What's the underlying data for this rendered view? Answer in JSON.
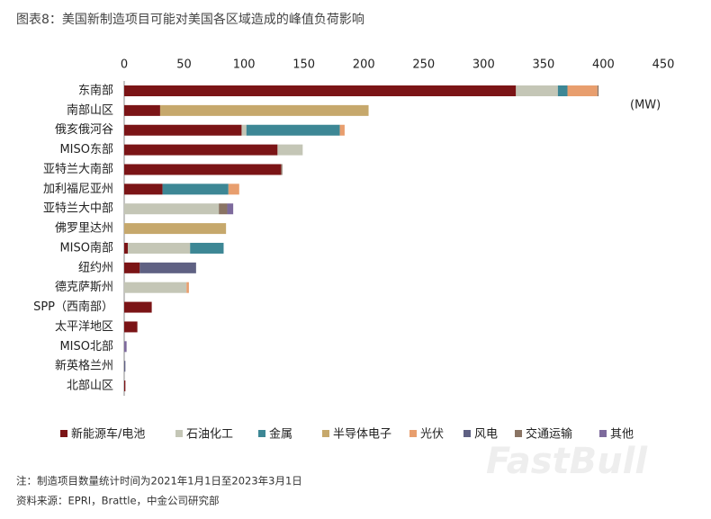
{
  "chart_data": {
    "type": "bar",
    "orientation": "horizontal",
    "stacked": true,
    "title": "图表8：美国新制造项目可能对美国各区域造成的峰值负荷影响",
    "unit_label": "(MW)",
    "categories": [
      "东南部",
      "南部山区",
      "俄亥俄河谷",
      "MISO东部",
      "亚特兰大南部",
      "加利福尼亚州",
      "亚特兰大中部",
      "佛罗里达州",
      "MISO南部",
      "纽约州",
      "德克萨斯州",
      "SPP（西南部）",
      "太平洋地区",
      "MISO北部",
      "新英格兰州",
      "北部山区"
    ],
    "series": [
      {
        "name": "新能源车/电池",
        "color": "#7b1416",
        "values": [
          327,
          30,
          98,
          128,
          131,
          32,
          0,
          0,
          3,
          13,
          0,
          23,
          11,
          0,
          0,
          1
        ]
      },
      {
        "name": "石油化工",
        "color": "#c4c6b6",
        "values": [
          35,
          0,
          4,
          21,
          0,
          0,
          79,
          0,
          52,
          0,
          52,
          0,
          0,
          0,
          0,
          0
        ]
      },
      {
        "name": "金属",
        "color": "#3d8795",
        "values": [
          8,
          0,
          78,
          0,
          0,
          55,
          0,
          0,
          28,
          0,
          0,
          0,
          0,
          0,
          0,
          0
        ]
      },
      {
        "name": "半导体电子",
        "color": "#c6a86c",
        "values": [
          0,
          174,
          0,
          0,
          0,
          0,
          0,
          85,
          0,
          0,
          0,
          0,
          0,
          0,
          0,
          0
        ]
      },
      {
        "name": "光伏",
        "color": "#e89e6e",
        "values": [
          25,
          0,
          4,
          0,
          0,
          9,
          0,
          0,
          0,
          0,
          2,
          0,
          0,
          0,
          0,
          0
        ]
      },
      {
        "name": "风电",
        "color": "#5f6183",
        "values": [
          0,
          0,
          0,
          0,
          0,
          0,
          0,
          0,
          0,
          47,
          0,
          0,
          0,
          0,
          1,
          0
        ]
      },
      {
        "name": "交通运输",
        "color": "#8a7464",
        "values": [
          1,
          0,
          0,
          0,
          1,
          0,
          7,
          0,
          0,
          0,
          0,
          0,
          0,
          0,
          0,
          0
        ]
      },
      {
        "name": "其他",
        "color": "#7d6a9c",
        "values": [
          0,
          0,
          0,
          0,
          0,
          0,
          5,
          0,
          0,
          0,
          0,
          0,
          0,
          2,
          0,
          0
        ]
      }
    ],
    "xlim": [
      0,
      450
    ],
    "xticks": [
      0,
      50,
      100,
      150,
      200,
      250,
      300,
      350,
      400,
      450
    ],
    "legend": "bottom",
    "notes": [
      "注：制造项目数量统计时间为2021年1月1日至2023年3月1日",
      "资料来源：EPRI，Brattle，中金公司研究部"
    ],
    "watermark": "FastBull"
  }
}
